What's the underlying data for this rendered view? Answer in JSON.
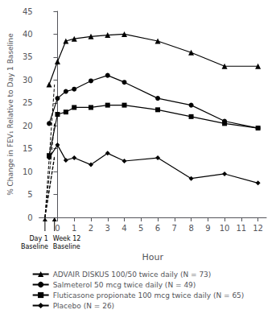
{
  "chart_data": {
    "type": "line",
    "xlabel": "Hour",
    "ylabel": "% Change in FEV₁ Relative to Day 1 Baseline",
    "x": [
      -0.5,
      0,
      0.5,
      1,
      2,
      3,
      4,
      6,
      8,
      10,
      12
    ],
    "series": [
      {
        "name": "ADVAIR DISKUS 100/50 twice daily (N = 73)",
        "color": "#000000",
        "marker": "triangle",
        "values": [
          29.0,
          34.0,
          38.5,
          39.0,
          39.5,
          39.8,
          40.0,
          38.5,
          36.0,
          33.0,
          33.0
        ]
      },
      {
        "name": "Salmeterol 50 mcg twice daily (N = 49)",
        "color": "#000000",
        "marker": "circle",
        "values": [
          20.5,
          26.0,
          27.5,
          28.0,
          29.8,
          31.0,
          29.5,
          26.0,
          24.5,
          21.0,
          19.5
        ]
      },
      {
        "name": "Fluticasone propionate 100 mcg twice daily (N = 65)",
        "color": "#000000",
        "marker": "square",
        "values": [
          13.5,
          22.5,
          23.0,
          24.0,
          24.0,
          24.5,
          24.5,
          23.5,
          22.0,
          20.5,
          19.5
        ]
      },
      {
        "name": "Placebo (N = 26)",
        "color": "#000000",
        "marker": "diamond",
        "values": [
          13.0,
          15.8,
          12.5,
          13.0,
          11.5,
          14.0,
          12.3,
          13.0,
          8.5,
          9.5,
          7.5
        ]
      }
    ],
    "annotations": [
      {
        "text": "Day 1\nBaseline",
        "x": -0.75,
        "y": 0
      },
      {
        "text": "Week 12\nBaseline",
        "x": -0.18,
        "y": 0
      }
    ],
    "xlim": [
      -1.1,
      12.5
    ],
    "xticks": [
      0,
      1,
      2,
      3,
      4,
      5,
      6,
      7,
      8,
      9,
      10,
      11,
      12
    ],
    "ylim": [
      0,
      45
    ],
    "yticks": [
      0,
      5,
      10,
      15,
      20,
      25,
      30,
      35,
      40,
      45
    ],
    "grid": false,
    "legend": "bottom"
  }
}
